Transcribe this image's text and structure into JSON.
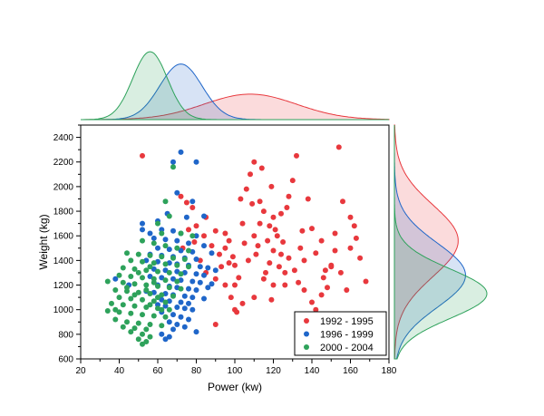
{
  "chart_data": {
    "type": "scatter",
    "title": "",
    "xlabel": "Power (kw)",
    "ylabel": "Weight (kg)",
    "xlim": [
      20,
      180
    ],
    "ylim": [
      600,
      2500
    ],
    "x_ticks": [
      20,
      40,
      60,
      80,
      100,
      120,
      140,
      160,
      180
    ],
    "y_ticks": [
      600,
      800,
      1000,
      1200,
      1400,
      1600,
      1800,
      2000,
      2200,
      2400
    ],
    "grid": false,
    "legend_position": "bottom-right",
    "marginals": "kernel density curves on top (Power) and right (Weight) for each series",
    "series": [
      {
        "name": "1992 - 1995",
        "color": "#e8383d",
        "kde_x": {
          "mean": 108,
          "sd": 24
        },
        "kde_y": {
          "mean": 1560,
          "sd": 290
        },
        "points": [
          [
            52,
            2250
          ],
          [
            72,
            1920
          ],
          [
            75,
            1870
          ],
          [
            78,
            1830
          ],
          [
            80,
            1680
          ],
          [
            85,
            1750
          ],
          [
            90,
            1640
          ],
          [
            92,
            1450
          ],
          [
            95,
            1620
          ],
          [
            97,
            1380
          ],
          [
            100,
            1360
          ],
          [
            102,
            1260
          ],
          [
            104,
            1700
          ],
          [
            106,
            1980
          ],
          [
            108,
            2100
          ],
          [
            110,
            2200
          ],
          [
            112,
            1520
          ],
          [
            113,
            1880
          ],
          [
            115,
            1800
          ],
          [
            117,
            1560
          ],
          [
            118,
            1680
          ],
          [
            120,
            1750
          ],
          [
            122,
            1600
          ],
          [
            124,
            1450
          ],
          [
            126,
            1300
          ],
          [
            128,
            1920
          ],
          [
            130,
            2050
          ],
          [
            132,
            2250
          ],
          [
            134,
            1500
          ],
          [
            136,
            1400
          ],
          [
            140,
            1660
          ],
          [
            142,
            1460
          ],
          [
            145,
            1560
          ],
          [
            148,
            1180
          ],
          [
            150,
            1360
          ],
          [
            152,
            1620
          ],
          [
            154,
            2320
          ],
          [
            156,
            1880
          ],
          [
            160,
            1750
          ],
          [
            162,
            1680
          ],
          [
            165,
            1420
          ],
          [
            168,
            1230
          ],
          [
            85,
            1300
          ],
          [
            90,
            1250
          ],
          [
            95,
            1500
          ],
          [
            98,
            1100
          ],
          [
            101,
            980
          ],
          [
            104,
            1050
          ],
          [
            107,
            1400
          ],
          [
            110,
            1600
          ],
          [
            113,
            1700
          ],
          [
            115,
            1250
          ],
          [
            118,
            1380
          ],
          [
            120,
            1480
          ],
          [
            123,
            1350
          ],
          [
            126,
            1200
          ],
          [
            128,
            1420
          ],
          [
            131,
            1320
          ],
          [
            133,
            1220
          ],
          [
            136,
            1160
          ],
          [
            140,
            1060
          ],
          [
            145,
            1120
          ],
          [
            150,
            1350
          ],
          [
            155,
            1300
          ],
          [
            160,
            1500
          ],
          [
            90,
            880
          ],
          [
            100,
            1000
          ],
          [
            110,
            1100
          ],
          [
            120,
            1200
          ],
          [
            95,
            1200
          ],
          [
            97,
            1560
          ],
          [
            103,
            1900
          ],
          [
            109,
            1860
          ],
          [
            114,
            2150
          ],
          [
            119,
            2000
          ],
          [
            121,
            1650
          ],
          [
            124,
            1780
          ],
          [
            127,
            1830
          ],
          [
            116,
            1300
          ],
          [
            111,
            1450
          ],
          [
            105,
            1540
          ],
          [
            99,
            1430
          ],
          [
            93,
            1350
          ],
          [
            88,
            1520
          ],
          [
            84,
            1600
          ],
          [
            82,
            1400
          ],
          [
            79,
            1550
          ],
          [
            76,
            1650
          ],
          [
            73,
            1500
          ],
          [
            125,
            1550
          ],
          [
            135,
            1640
          ],
          [
            146,
            1260
          ],
          [
            158,
            1160
          ],
          [
            138,
            1900
          ],
          [
            142,
            1000
          ],
          [
            147,
            1320
          ],
          [
            152,
            1480
          ],
          [
            163,
            1580
          ],
          [
            100,
            1200
          ],
          [
            119,
            1080
          ]
        ]
      },
      {
        "name": "1996 - 1999",
        "color": "#1f66c9",
        "kde_x": {
          "mean": 72,
          "sd": 11
        },
        "kde_y": {
          "mean": 1280,
          "sd": 260
        },
        "points": [
          [
            72,
            2280
          ],
          [
            68,
            2200
          ],
          [
            80,
            2200
          ],
          [
            70,
            1950
          ],
          [
            78,
            1880
          ],
          [
            65,
            1780
          ],
          [
            75,
            1750
          ],
          [
            60,
            1720
          ],
          [
            52,
            1700
          ],
          [
            52,
            1650
          ],
          [
            62,
            1650
          ],
          [
            68,
            1640
          ],
          [
            72,
            1620
          ],
          [
            80,
            1600
          ],
          [
            58,
            1580
          ],
          [
            64,
            1570
          ],
          [
            70,
            1560
          ],
          [
            76,
            1540
          ],
          [
            84,
            1520
          ],
          [
            60,
            1500
          ],
          [
            66,
            1490
          ],
          [
            72,
            1480
          ],
          [
            78,
            1470
          ],
          [
            88,
            1460
          ],
          [
            56,
            1450
          ],
          [
            62,
            1440
          ],
          [
            68,
            1430
          ],
          [
            74,
            1420
          ],
          [
            80,
            1410
          ],
          [
            54,
            1400
          ],
          [
            60,
            1390
          ],
          [
            66,
            1380
          ],
          [
            70,
            1370
          ],
          [
            76,
            1360
          ],
          [
            82,
            1350
          ],
          [
            86,
            1340
          ],
          [
            58,
            1330
          ],
          [
            64,
            1320
          ],
          [
            70,
            1310
          ],
          [
            74,
            1300
          ],
          [
            80,
            1290
          ],
          [
            84,
            1280
          ],
          [
            56,
            1270
          ],
          [
            62,
            1260
          ],
          [
            68,
            1250
          ],
          [
            72,
            1240
          ],
          [
            78,
            1230
          ],
          [
            82,
            1220
          ],
          [
            88,
            1210
          ],
          [
            60,
            1200
          ],
          [
            66,
            1190
          ],
          [
            70,
            1180
          ],
          [
            76,
            1170
          ],
          [
            80,
            1160
          ],
          [
            54,
            1150
          ],
          [
            58,
            1140
          ],
          [
            64,
            1130
          ],
          [
            68,
            1120
          ],
          [
            74,
            1110
          ],
          [
            78,
            1100
          ],
          [
            84,
            1090
          ],
          [
            62,
            1080
          ],
          [
            66,
            1070
          ],
          [
            72,
            1060
          ],
          [
            76,
            1050
          ],
          [
            60,
            1040
          ],
          [
            64,
            1030
          ],
          [
            70,
            1020
          ],
          [
            74,
            1010
          ],
          [
            78,
            1000
          ],
          [
            62,
            980
          ],
          [
            68,
            960
          ],
          [
            72,
            940
          ],
          [
            76,
            920
          ],
          [
            66,
            900
          ],
          [
            70,
            880
          ],
          [
            74,
            860
          ],
          [
            68,
            840
          ],
          [
            80,
            820
          ],
          [
            62,
            800
          ],
          [
            66,
            780
          ],
          [
            64,
            760
          ],
          [
            38,
            1250
          ],
          [
            45,
            1200
          ],
          [
            56,
            1620
          ],
          [
            84,
            1760
          ],
          [
            86,
            1180
          ],
          [
            90,
            1320
          ]
        ]
      },
      {
        "name": "2000 - 2004",
        "color": "#2ea25b",
        "kde_x": {
          "mean": 56,
          "sd": 9
        },
        "kde_y": {
          "mean": 1130,
          "sd": 200
        },
        "points": [
          [
            68,
            2160
          ],
          [
            64,
            1880
          ],
          [
            66,
            1760
          ],
          [
            60,
            1700
          ],
          [
            62,
            1620
          ],
          [
            72,
            1620
          ],
          [
            78,
            1600
          ],
          [
            52,
            1560
          ],
          [
            58,
            1540
          ],
          [
            64,
            1520
          ],
          [
            70,
            1500
          ],
          [
            76,
            1480
          ],
          [
            44,
            1460
          ],
          [
            50,
            1450
          ],
          [
            56,
            1440
          ],
          [
            62,
            1430
          ],
          [
            68,
            1420
          ],
          [
            74,
            1410
          ],
          [
            46,
            1400
          ],
          [
            52,
            1390
          ],
          [
            58,
            1380
          ],
          [
            64,
            1370
          ],
          [
            70,
            1360
          ],
          [
            76,
            1350
          ],
          [
            42,
            1340
          ],
          [
            48,
            1330
          ],
          [
            54,
            1320
          ],
          [
            60,
            1310
          ],
          [
            66,
            1300
          ],
          [
            72,
            1290
          ],
          [
            40,
            1280
          ],
          [
            46,
            1270
          ],
          [
            52,
            1260
          ],
          [
            58,
            1250
          ],
          [
            64,
            1240
          ],
          [
            70,
            1230
          ],
          [
            34,
            1230
          ],
          [
            42,
            1220
          ],
          [
            48,
            1210
          ],
          [
            54,
            1200
          ],
          [
            60,
            1190
          ],
          [
            66,
            1180
          ],
          [
            72,
            1170
          ],
          [
            38,
            1160
          ],
          [
            44,
            1150
          ],
          [
            50,
            1140
          ],
          [
            56,
            1130
          ],
          [
            62,
            1120
          ],
          [
            68,
            1110
          ],
          [
            40,
            1100
          ],
          [
            46,
            1090
          ],
          [
            52,
            1080
          ],
          [
            58,
            1070
          ],
          [
            64,
            1060
          ],
          [
            36,
            1050
          ],
          [
            42,
            1040
          ],
          [
            48,
            1030
          ],
          [
            54,
            1020
          ],
          [
            60,
            1010
          ],
          [
            66,
            1000
          ],
          [
            34,
            990
          ],
          [
            40,
            980
          ],
          [
            46,
            970
          ],
          [
            52,
            960
          ],
          [
            58,
            950
          ],
          [
            64,
            940
          ],
          [
            38,
            920
          ],
          [
            44,
            900
          ],
          [
            50,
            890
          ],
          [
            56,
            880
          ],
          [
            62,
            870
          ],
          [
            42,
            860
          ],
          [
            48,
            850
          ],
          [
            54,
            840
          ],
          [
            46,
            820
          ],
          [
            52,
            800
          ],
          [
            56,
            780
          ],
          [
            50,
            760
          ],
          [
            54,
            740
          ],
          [
            52,
            720
          ],
          [
            38,
            1000
          ],
          [
            44,
            1180
          ],
          [
            50,
            1300
          ],
          [
            56,
            1350
          ],
          [
            60,
            1100
          ],
          [
            48,
            1120
          ],
          [
            54,
            1160
          ],
          [
            58,
            1220
          ],
          [
            62,
            1000
          ],
          [
            56,
            1040
          ]
        ]
      }
    ]
  }
}
